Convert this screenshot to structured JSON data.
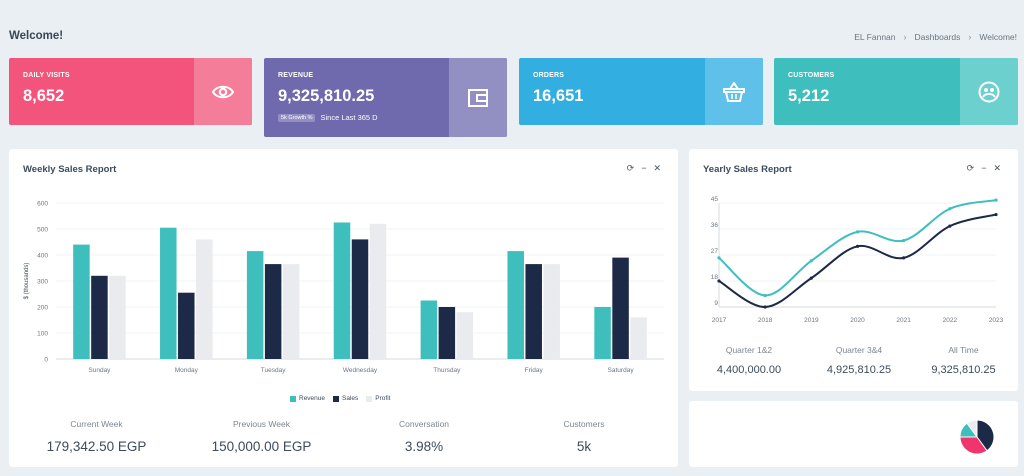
{
  "header": {
    "title": "Welcome!",
    "breadcrumb": [
      "EL Fannan",
      "Dashboards",
      "Welcome!"
    ]
  },
  "stats": [
    {
      "label": "DAILY VISITS",
      "value": "8,652",
      "icon": "eye-icon",
      "color": "#f3547b",
      "icon_bg": "#f47d9a"
    },
    {
      "label": "REVENUE",
      "value": "9,325,810.25",
      "icon": "wallet-icon",
      "color": "#6f6aad",
      "icon_bg": "#928fc3",
      "pill": "5k Growth %",
      "sub": "Since Last 365 D"
    },
    {
      "label": "ORDERS",
      "value": "16,651",
      "icon": "basket-icon",
      "color": "#33aee1",
      "icon_bg": "#5fc1e9"
    },
    {
      "label": "CUSTOMERS",
      "value": "5,212",
      "icon": "users-icon",
      "color": "#3ebfbd",
      "icon_bg": "#6cd0cf"
    }
  ],
  "weekly": {
    "title": "Weekly Sales Report",
    "footer": [
      {
        "label": "Current Week",
        "value": "179,342.50 EGP"
      },
      {
        "label": "Previous Week",
        "value": "150,000.00 EGP"
      },
      {
        "label": "Conversation",
        "value": "3.98%"
      },
      {
        "label": "Customers",
        "value": "5k"
      }
    ]
  },
  "yearly": {
    "title": "Yearly Sales Report",
    "footer": [
      {
        "label": "Quarter 1&2",
        "value": "4,400,000.00"
      },
      {
        "label": "Quarter 3&4",
        "value": "4,925,810.25"
      },
      {
        "label": "All Time",
        "value": "9,325,810.25"
      }
    ]
  },
  "chart_data": [
    {
      "type": "bar",
      "ylabel": "$ (thousands)",
      "ylim": [
        0,
        600
      ],
      "yticks": [
        0,
        100,
        200,
        300,
        400,
        500,
        600
      ],
      "categories": [
        "Sunday",
        "Monday",
        "Tuesday",
        "Wednesday",
        "Thursday",
        "Friday",
        "Saturday"
      ],
      "series": [
        {
          "name": "Revenue",
          "color": "#3ebfbd",
          "values": [
            440,
            505,
            415,
            525,
            225,
            415,
            200
          ]
        },
        {
          "name": "Sales",
          "color": "#1c2a47",
          "values": [
            320,
            255,
            365,
            460,
            200,
            365,
            390
          ]
        },
        {
          "name": "Profit",
          "color": "#e9ebee",
          "values": [
            320,
            460,
            365,
            520,
            180,
            365,
            160
          ]
        }
      ],
      "legend": "bottom",
      "grid": true
    },
    {
      "type": "line",
      "ylim": [
        9,
        45
      ],
      "yticks": [
        9,
        18,
        27,
        36,
        45
      ],
      "x": [
        "2017",
        "2018",
        "2019",
        "2020",
        "2021",
        "2022",
        "2023"
      ],
      "series": [
        {
          "color": "#3ebfbd",
          "values": [
            26,
            13,
            25,
            35,
            32,
            43,
            46
          ]
        },
        {
          "color": "#1c2a47",
          "values": [
            18,
            9,
            19,
            30,
            26,
            37,
            41
          ]
        }
      ],
      "grid": true
    },
    {
      "type": "pie",
      "values": [
        40,
        35,
        15,
        10
      ],
      "colors": [
        "#1c2a47",
        "#f0356e",
        "#3ebfbd",
        "#e9ebee"
      ]
    }
  ]
}
